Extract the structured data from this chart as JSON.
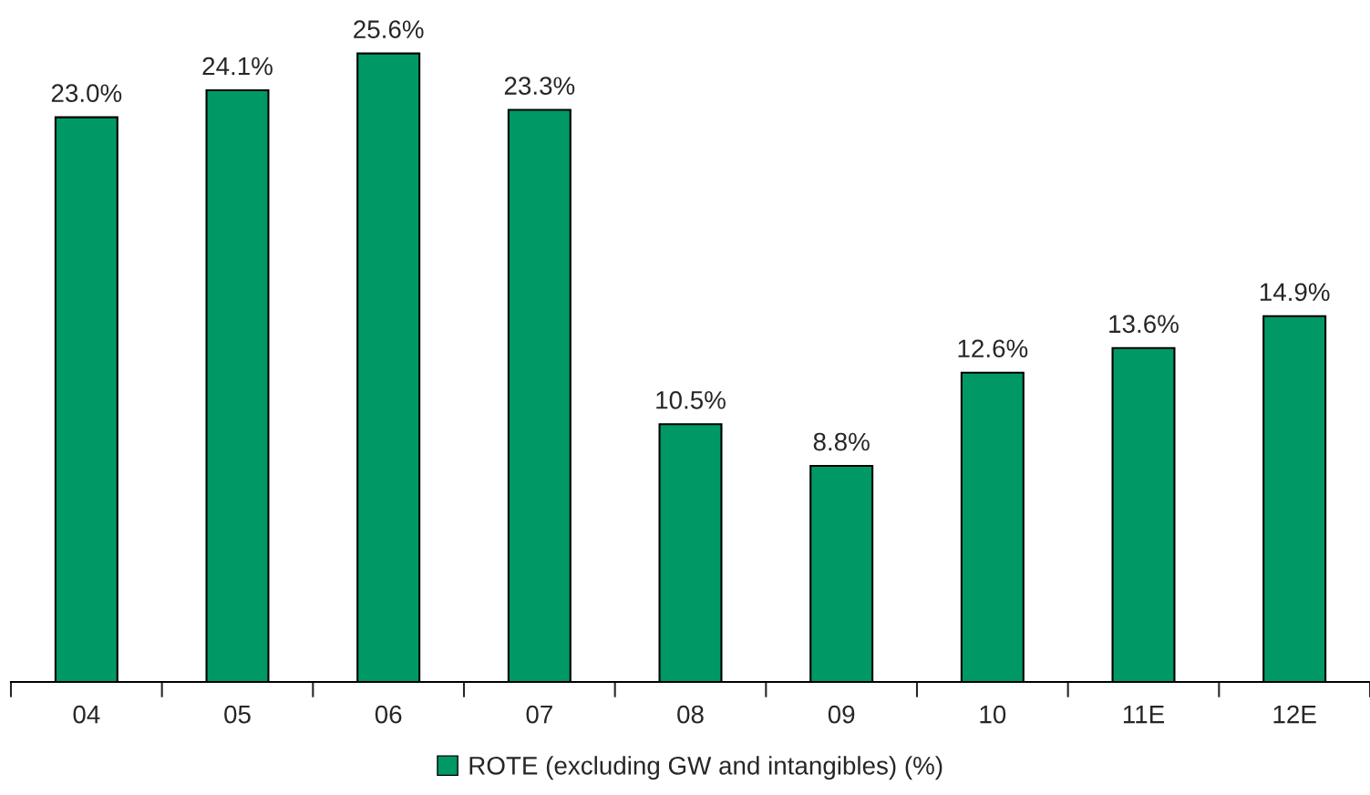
{
  "chart_data": {
    "type": "bar",
    "categories": [
      "04",
      "05",
      "06",
      "07",
      "08",
      "09",
      "10",
      "11E",
      "12E"
    ],
    "series": [
      {
        "name": "ROTE (excluding GW and intangibles) (%)",
        "color": "#009966",
        "values": [
          23.0,
          24.1,
          25.6,
          23.3,
          10.5,
          8.8,
          12.6,
          13.6,
          14.9
        ],
        "value_labels": [
          "23.0%",
          "24.1%",
          "25.6%",
          "23.3%",
          "10.5%",
          "8.8%",
          "12.6%",
          "13.6%",
          "14.9%"
        ]
      }
    ],
    "legend": "bottom",
    "grid": false
  }
}
